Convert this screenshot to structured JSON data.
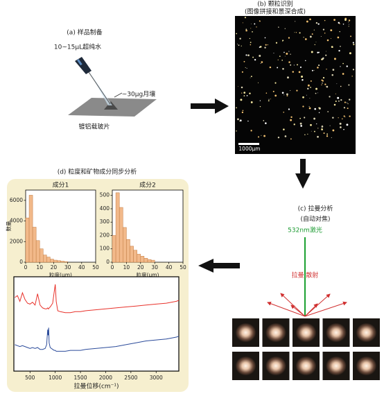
{
  "panel_a": {
    "label": "(a) 样品制备",
    "water": "10~15μL超纯水",
    "soil": "~30μg月壤",
    "slide": "镀铝载玻片"
  },
  "panel_b": {
    "label": "(b) 颗粒识别",
    "subtitle": "(图像拼接和景深合成)",
    "scale_bar": "1000μm"
  },
  "panel_c": {
    "label": "(c) 拉曼分析",
    "subtitle": "(自动对焦)",
    "laser": "532nm激光",
    "scatter": "拉曼 散射"
  },
  "panel_d": {
    "label": "(d) 粒度和矿物成分同步分析",
    "histograms": [
      {
        "type": "histogram",
        "title": "成分1",
        "xlabel": "粒度(μm)",
        "ylabel": "数量",
        "color": "#f2b98a",
        "bins": [
          0,
          2.5,
          5,
          7.5,
          10,
          12.5,
          15,
          17.5,
          20,
          22.5,
          25,
          27.5,
          30
        ],
        "values": [
          4300,
          6500,
          3400,
          2100,
          1300,
          700,
          500,
          300,
          200,
          150,
          100,
          60
        ],
        "xlim": [
          0,
          50
        ],
        "ylim": [
          0,
          7000
        ],
        "xticks": [
          0,
          10,
          20,
          30,
          40,
          50
        ],
        "yticks": [
          0,
          2000,
          4000,
          6000
        ]
      },
      {
        "type": "histogram",
        "title": "成分2",
        "xlabel": "粒度(μm)",
        "color": "#f2b98a",
        "bins": [
          0,
          2.5,
          5,
          7.5,
          10,
          12.5,
          15,
          17.5,
          20,
          22.5,
          25,
          27.5,
          30
        ],
        "values": [
          200,
          520,
          410,
          260,
          170,
          120,
          90,
          60,
          45,
          30,
          20,
          15
        ],
        "xlim": [
          0,
          50
        ],
        "ylim": [
          0,
          540
        ],
        "xticks": [
          0,
          10,
          20,
          30,
          40,
          50
        ],
        "yticks": [
          0,
          100,
          200,
          300,
          400,
          500
        ]
      }
    ],
    "spectrum": {
      "type": "line",
      "xlabel": "拉曼位移(cm⁻¹)",
      "x": [
        200,
        250,
        300,
        350,
        400,
        450,
        500,
        550,
        600,
        650,
        700,
        750,
        800,
        830,
        850,
        860,
        870,
        880,
        900,
        950,
        980,
        1000,
        1020,
        1050,
        1100,
        1200,
        1300,
        1400,
        1500,
        1600,
        1800,
        2000,
        2200,
        2400,
        2600,
        2800,
        3000,
        3200,
        3400,
        3450
      ],
      "series": [
        {
          "color": "#e8312a",
          "values": [
            78,
            80,
            74,
            83,
            76,
            72,
            71,
            73,
            70,
            82,
            70,
            67,
            66,
            66,
            67,
            66,
            66,
            67,
            68,
            72,
            84,
            92,
            74,
            64,
            63,
            62,
            62,
            63,
            63,
            64,
            65,
            66,
            67,
            68,
            69,
            70,
            71,
            72,
            74,
            75
          ]
        },
        {
          "color": "#2a4a9a",
          "values": [
            28,
            27,
            26,
            27,
            26,
            25,
            24,
            25,
            24,
            25,
            23,
            23,
            24,
            28,
            44,
            38,
            46,
            30,
            25,
            23,
            22,
            22,
            21,
            21,
            21,
            21,
            22,
            22,
            22,
            23,
            24,
            25,
            26,
            28,
            30,
            32,
            33,
            34,
            36,
            37
          ]
        }
      ],
      "xlim": [
        180,
        3450
      ],
      "ylim": [
        0,
        100
      ],
      "xticks": [
        500,
        1000,
        1500,
        2000,
        2500,
        3000
      ]
    }
  }
}
